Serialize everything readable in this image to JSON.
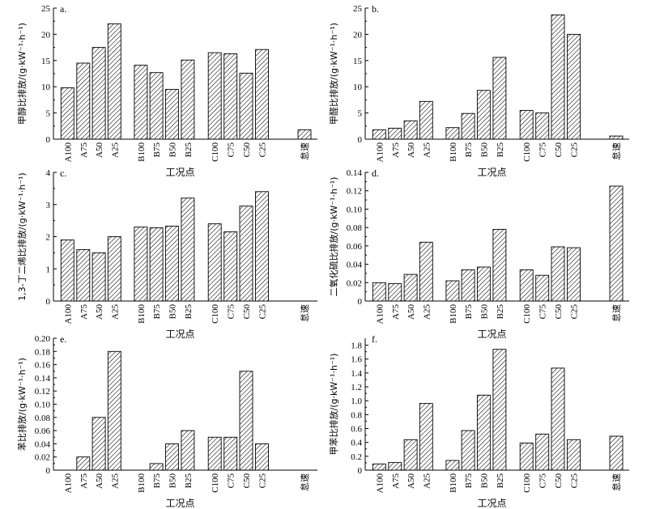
{
  "chart_data": [
    {
      "type": "bar",
      "panel_label": "a.",
      "ylabel": "甲醇比排放/(g·kW⁻¹·h⁻¹)",
      "xlabel": "工况点",
      "ylim": [
        0,
        25
      ],
      "yticks": [
        0,
        5,
        10,
        15,
        20,
        25
      ],
      "categories": [
        "A100",
        "A75",
        "A50",
        "A25",
        "B100",
        "B75",
        "B50",
        "B25",
        "C100",
        "C75",
        "C50",
        "C25",
        "怠速"
      ],
      "values": [
        9.8,
        14.5,
        17.5,
        22.0,
        14.1,
        12.7,
        9.5,
        15.1,
        16.5,
        16.3,
        12.6,
        17.1,
        1.8
      ]
    },
    {
      "type": "bar",
      "panel_label": "b.",
      "ylabel": "甲醛比排放/(g·kW⁻¹·h⁻¹)",
      "xlabel": "工况点",
      "ylim": [
        0,
        25
      ],
      "yticks": [
        0,
        5,
        10,
        15,
        20,
        25
      ],
      "categories": [
        "A100",
        "A75",
        "A50",
        "A25",
        "B100",
        "B75",
        "B50",
        "B25",
        "C100",
        "C75",
        "C50",
        "C25",
        "怠速"
      ],
      "values": [
        1.8,
        2.1,
        3.5,
        7.2,
        2.2,
        4.9,
        9.3,
        15.6,
        5.5,
        5.0,
        23.7,
        20.0,
        0.6
      ]
    },
    {
      "type": "bar",
      "panel_label": "c.",
      "ylabel": "1,3-丁二烯比排放/(g·kW⁻¹·h⁻¹)",
      "xlabel": "工况点",
      "ylim": [
        0,
        4
      ],
      "yticks": [
        0,
        1,
        2,
        3,
        4
      ],
      "categories": [
        "A100",
        "A75",
        "A50",
        "A25",
        "B100",
        "B75",
        "B50",
        "B25",
        "C100",
        "C75",
        "C50",
        "C25",
        "怠速"
      ],
      "values": [
        1.9,
        1.6,
        1.5,
        2.0,
        2.3,
        2.28,
        2.33,
        3.2,
        2.4,
        2.15,
        2.95,
        3.4,
        0
      ]
    },
    {
      "type": "bar",
      "panel_label": "d.",
      "ylabel": "二氧化硫比排放/(g·kW⁻¹·h⁻¹)",
      "xlabel": "工况点",
      "ylim": [
        0,
        0.14
      ],
      "yticks": [
        "0",
        "0.02",
        "0.04",
        "0.06",
        "0.08",
        "0.10",
        "0.12",
        "0.14"
      ],
      "categories": [
        "A100",
        "A75",
        "A50",
        "A25",
        "B100",
        "B75",
        "B50",
        "B25",
        "C100",
        "C75",
        "C50",
        "C25",
        "怠速"
      ],
      "values": [
        0.02,
        0.019,
        0.029,
        0.064,
        0.022,
        0.034,
        0.037,
        0.078,
        0.034,
        0.028,
        0.059,
        0.058,
        0.125
      ]
    },
    {
      "type": "bar",
      "panel_label": "e.",
      "ylabel": "苯比排放/(g·kW⁻¹·h⁻¹)",
      "xlabel": "工况点",
      "ylim": [
        0,
        0.2
      ],
      "yticks": [
        "0",
        "0.02",
        "0.04",
        "0.06",
        "0.08",
        "0.10",
        "0.12",
        "0.14",
        "0.16",
        "0.18",
        "0.20"
      ],
      "categories": [
        "A100",
        "A75",
        "A50",
        "A25",
        "B100",
        "B75",
        "B50",
        "B25",
        "C100",
        "C75",
        "C50",
        "C25",
        "怠速"
      ],
      "values": [
        0,
        0.02,
        0.08,
        0.18,
        0,
        0.01,
        0.04,
        0.06,
        0.05,
        0.05,
        0.15,
        0.04,
        0
      ]
    },
    {
      "type": "bar",
      "panel_label": "f.",
      "ylabel": "甲苯比排放/(g·kW⁻¹·h⁻¹)",
      "xlabel": "工况点",
      "ylim": [
        0,
        1.9
      ],
      "yticks": [
        "0",
        "0.2",
        "0.4",
        "0.6",
        "0.8",
        "1.0",
        "1.2",
        "1.4",
        "1.6",
        "1.8"
      ],
      "categories": [
        "A100",
        "A75",
        "A50",
        "A25",
        "B100",
        "B75",
        "B50",
        "B25",
        "C100",
        "C75",
        "C50",
        "C25",
        "怠速"
      ],
      "values": [
        0.09,
        0.11,
        0.44,
        0.96,
        0.14,
        0.57,
        1.08,
        1.74,
        0.39,
        0.52,
        1.47,
        0.44,
        0.49
      ]
    }
  ]
}
